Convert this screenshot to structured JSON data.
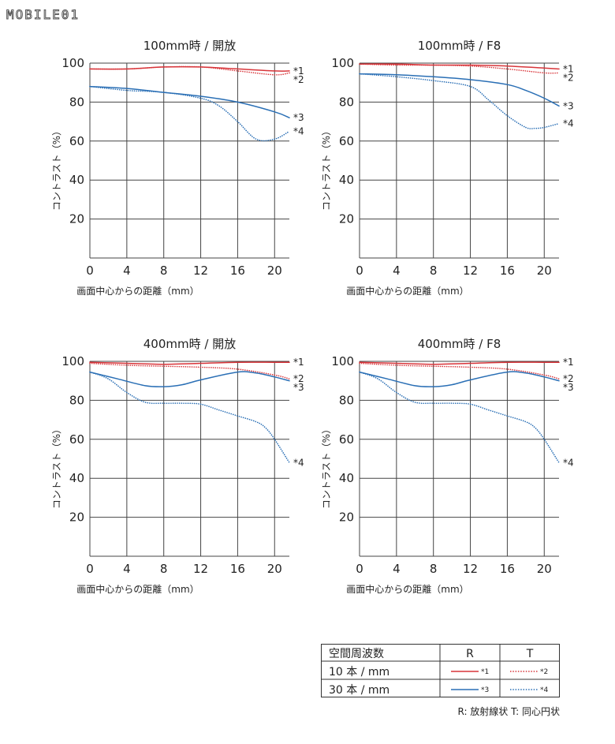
{
  "logo": {
    "text": "MOBILE01"
  },
  "colors": {
    "red": "#d8353a",
    "blue": "#2a6fb5",
    "grid": "#444444",
    "text": "#222222"
  },
  "chart_data": [
    {
      "type": "line",
      "title": "100mm時 / 開放",
      "xlabel": "画面中心からの距離（mm）",
      "ylabel": "コントラスト（%）",
      "xlim": [
        0,
        21.6
      ],
      "ylim": [
        0,
        100
      ],
      "xticks": [
        0,
        4,
        8,
        12,
        16,
        20
      ],
      "yticks": [
        20,
        40,
        60,
        80,
        100
      ],
      "grid": true,
      "series": [
        {
          "name": "*1",
          "color": "#d8353a",
          "style": "solid",
          "x": [
            0,
            4,
            8,
            12,
            16,
            20,
            21.6
          ],
          "y": [
            97,
            97,
            98,
            98,
            97,
            96,
            96
          ]
        },
        {
          "name": "*2",
          "color": "#d8353a",
          "style": "dotted",
          "x": [
            0,
            4,
            8,
            12,
            16,
            20,
            21.6
          ],
          "y": [
            97,
            97,
            98,
            98,
            96,
            94,
            95
          ]
        },
        {
          "name": "*3",
          "color": "#2a6fb5",
          "style": "solid",
          "x": [
            0,
            4,
            8,
            12,
            16,
            20,
            21.6
          ],
          "y": [
            88,
            87,
            85,
            83,
            80,
            75,
            72
          ]
        },
        {
          "name": "*4",
          "color": "#2a6fb5",
          "style": "dotted",
          "x": [
            0,
            4,
            8,
            12,
            14,
            16,
            18,
            20,
            21.6
          ],
          "y": [
            88,
            86,
            85,
            82,
            78,
            70,
            61,
            61,
            65
          ]
        }
      ]
    },
    {
      "type": "line",
      "title": "100mm時 / F8",
      "xlabel": "画面中心からの距離（mm）",
      "ylabel": "コントラスト（%）",
      "xlim": [
        0,
        21.6
      ],
      "ylim": [
        0,
        100
      ],
      "xticks": [
        0,
        4,
        8,
        12,
        16,
        20
      ],
      "yticks": [
        20,
        40,
        60,
        80,
        100
      ],
      "grid": true,
      "series": [
        {
          "name": "*1",
          "color": "#d8353a",
          "style": "solid",
          "x": [
            0,
            4,
            8,
            12,
            16,
            20,
            21.6
          ],
          "y": [
            99.5,
            99.5,
            99,
            99,
            98.5,
            97.5,
            97
          ]
        },
        {
          "name": "*2",
          "color": "#d8353a",
          "style": "dotted",
          "x": [
            0,
            4,
            8,
            12,
            16,
            20,
            21.6
          ],
          "y": [
            99.5,
            99,
            99,
            98.5,
            97,
            95,
            95
          ]
        },
        {
          "name": "*3",
          "color": "#2a6fb5",
          "style": "solid",
          "x": [
            0,
            4,
            8,
            12,
            16,
            18,
            20,
            21.6
          ],
          "y": [
            94.5,
            94,
            93,
            91.5,
            89,
            86,
            82,
            78
          ]
        },
        {
          "name": "*4",
          "color": "#2a6fb5",
          "style": "dotted",
          "x": [
            0,
            4,
            8,
            12,
            14,
            16,
            18,
            19,
            20,
            21.6
          ],
          "y": [
            94.5,
            93,
            91,
            88,
            81,
            73,
            67,
            66.5,
            67,
            69
          ]
        }
      ]
    },
    {
      "type": "line",
      "title": "400mm時 / 開放",
      "xlabel": "画面中心からの距離（mm）",
      "ylabel": "コントラスト（%）",
      "xlim": [
        0,
        21.6
      ],
      "ylim": [
        0,
        100
      ],
      "xticks": [
        0,
        4,
        8,
        12,
        16,
        20
      ],
      "yticks": [
        20,
        40,
        60,
        80,
        100
      ],
      "grid": true,
      "series": [
        {
          "name": "*1",
          "color": "#d8353a",
          "style": "solid",
          "x": [
            0,
            4,
            8,
            12,
            16,
            20,
            21.6
          ],
          "y": [
            99.5,
            99,
            98.5,
            99,
            99.5,
            99.5,
            99.5
          ]
        },
        {
          "name": "*2",
          "color": "#d8353a",
          "style": "dotted",
          "x": [
            0,
            4,
            8,
            12,
            16,
            20,
            21.6
          ],
          "y": [
            99,
            98,
            97.5,
            97,
            96,
            93,
            91
          ]
        },
        {
          "name": "*3",
          "color": "#2a6fb5",
          "style": "solid",
          "x": [
            0,
            3,
            6,
            8,
            10,
            12,
            16,
            18,
            20,
            21.6
          ],
          "y": [
            94.5,
            91,
            87.5,
            87,
            88,
            90.5,
            94.5,
            94,
            92,
            90
          ]
        },
        {
          "name": "*4",
          "color": "#2a6fb5",
          "style": "dotted",
          "x": [
            0,
            2,
            4,
            6,
            8,
            10,
            12,
            14,
            16,
            18,
            19,
            20,
            21.6
          ],
          "y": [
            94.5,
            91,
            84,
            79,
            78.5,
            78.5,
            78,
            75,
            72,
            69,
            66,
            60,
            48
          ]
        }
      ]
    },
    {
      "type": "line",
      "title": "400mm時 / F8",
      "xlabel": "画面中心からの距離（mm）",
      "ylabel": "コントラスト（%）",
      "xlim": [
        0,
        21.6
      ],
      "ylim": [
        0,
        100
      ],
      "xticks": [
        0,
        4,
        8,
        12,
        16,
        20
      ],
      "yticks": [
        20,
        40,
        60,
        80,
        100
      ],
      "grid": true,
      "series": [
        {
          "name": "*1",
          "color": "#d8353a",
          "style": "solid",
          "x": [
            0,
            4,
            8,
            12,
            16,
            20,
            21.6
          ],
          "y": [
            99.5,
            99,
            98.5,
            99,
            99.5,
            99.5,
            99.5
          ]
        },
        {
          "name": "*2",
          "color": "#d8353a",
          "style": "dotted",
          "x": [
            0,
            4,
            8,
            12,
            16,
            20,
            21.6
          ],
          "y": [
            99,
            98,
            97.5,
            97,
            96,
            93,
            91
          ]
        },
        {
          "name": "*3",
          "color": "#2a6fb5",
          "style": "solid",
          "x": [
            0,
            3,
            6,
            8,
            10,
            12,
            16,
            18,
            20,
            21.6
          ],
          "y": [
            94.5,
            91,
            87.5,
            87,
            88,
            90.5,
            94.5,
            94,
            92,
            90
          ]
        },
        {
          "name": "*4",
          "color": "#2a6fb5",
          "style": "dotted",
          "x": [
            0,
            2,
            4,
            6,
            8,
            10,
            12,
            14,
            16,
            18,
            19,
            20,
            21.6
          ],
          "y": [
            94.5,
            91,
            84,
            79,
            78.5,
            78.5,
            78,
            75,
            72,
            69,
            66,
            60,
            48
          ]
        }
      ]
    }
  ],
  "legend_table": {
    "header": [
      "空間周波数",
      "R",
      "T"
    ],
    "rows": [
      {
        "label": "10 本 / mm",
        "r": "*1",
        "t": "*2"
      },
      {
        "label": "30 本 / mm",
        "r": "*3",
        "t": "*4"
      }
    ],
    "note": "R: 放射線状  T: 同心円状"
  }
}
